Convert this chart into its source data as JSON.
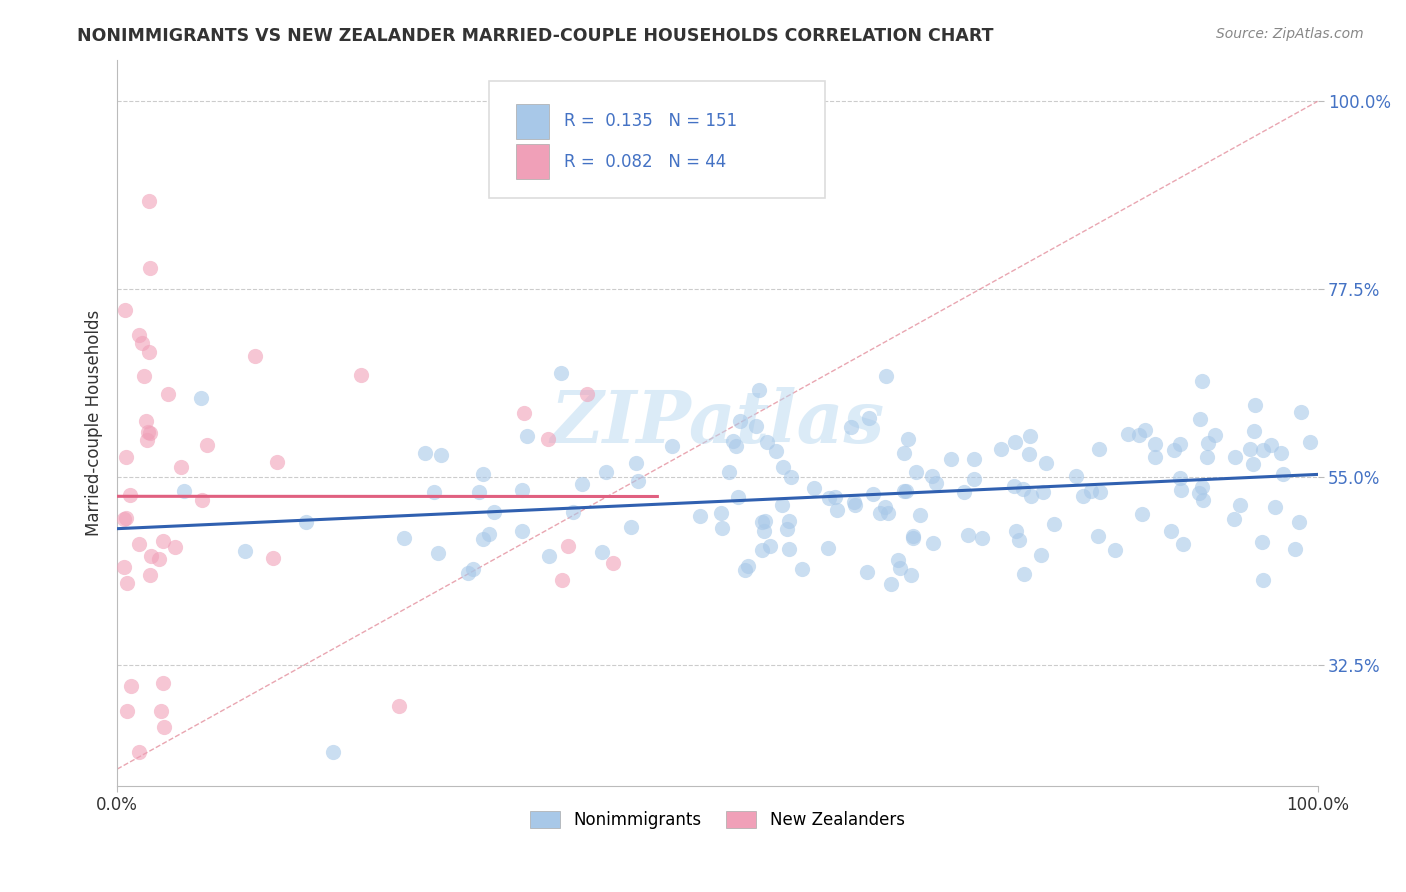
{
  "title": "NONIMMIGRANTS VS NEW ZEALANDER MARRIED-COUPLE HOUSEHOLDS CORRELATION CHART",
  "source": "Source: ZipAtlas.com",
  "ylabel": "Married-couple Households",
  "yticks_labels": [
    "32.5%",
    "55.0%",
    "77.5%",
    "100.0%"
  ],
  "ytick_vals": [
    0.325,
    0.55,
    0.775,
    1.0
  ],
  "ymin": 0.18,
  "ymax": 1.05,
  "xmin": 0.0,
  "xmax": 1.0,
  "nonimmigrants_color": "#a8c8e8",
  "nz_color": "#f0a0b8",
  "nonimmigrants_line_color": "#3060b0",
  "nz_line_color": "#e06080",
  "diagonal_color": "#e08090",
  "background_color": "#ffffff",
  "grid_color": "#cccccc",
  "r_box_edge_color": "#dddddd",
  "watermark_color": "#b8d8f0",
  "title_color": "#333333",
  "source_color": "#888888",
  "ytick_color": "#4472c4",
  "xtick_color": "#333333"
}
